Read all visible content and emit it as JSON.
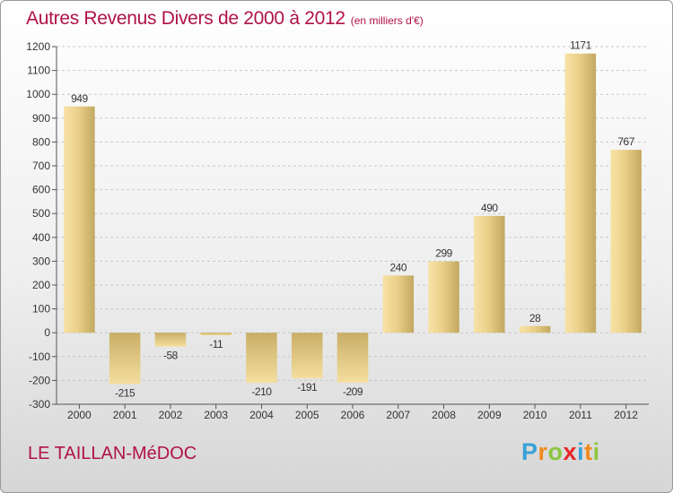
{
  "header": {
    "title": "Autres Revenus Divers de 2000 à 2012",
    "subtitle": "(en milliers d'€)"
  },
  "footer": {
    "city": "LE TAILLAN-MéDOC",
    "logo": [
      "P",
      "r",
      "o",
      "x",
      "i",
      "t",
      "i"
    ]
  },
  "colors": {
    "title": "#b0124a",
    "bar_light": "#f5dd9c",
    "bar_dark": "#c2a860",
    "grid": "#c8c8c8"
  },
  "chart_data": {
    "type": "bar",
    "title": "Autres Revenus Divers de 2000 à 2012",
    "subtitle": "(en milliers d'€)",
    "categories": [
      "2000",
      "2001",
      "2002",
      "2003",
      "2004",
      "2005",
      "2006",
      "2007",
      "2008",
      "2009",
      "2010",
      "2011",
      "2012"
    ],
    "values": [
      949,
      -215,
      -58,
      -11,
      -210,
      -191,
      -209,
      240,
      299,
      490,
      28,
      1171,
      767
    ],
    "ylim": [
      -300,
      1200
    ],
    "yticks": [
      -300,
      -200,
      -100,
      0,
      100,
      200,
      300,
      400,
      500,
      600,
      700,
      800,
      900,
      1000,
      1100,
      1200
    ],
    "grid": true,
    "legend": "none"
  }
}
